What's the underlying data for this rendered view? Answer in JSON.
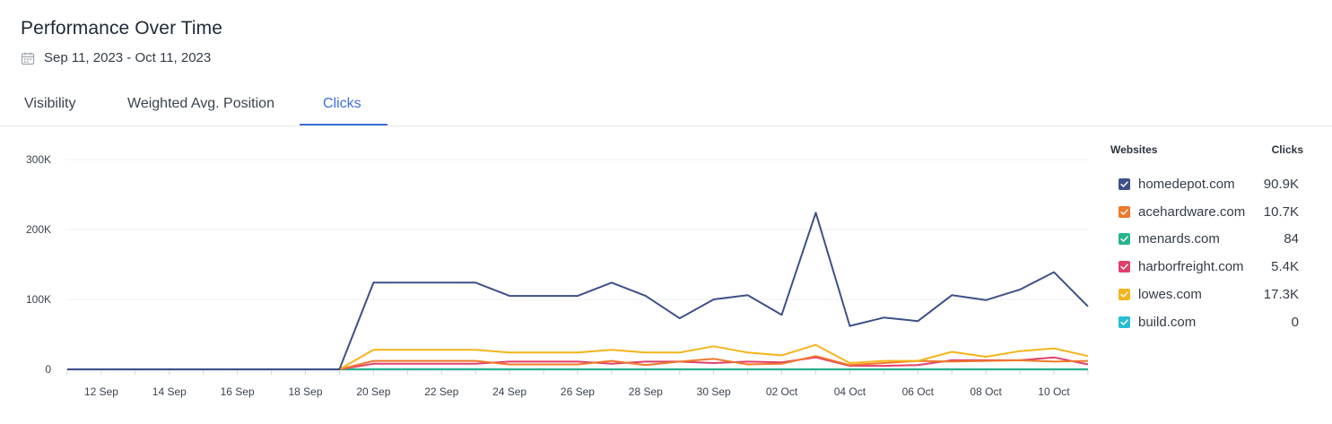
{
  "header": {
    "title": "Performance Over Time",
    "date_range": "Sep 11, 2023 - Oct 11, 2023"
  },
  "tabs": [
    {
      "label": "Visibility",
      "active": false
    },
    {
      "label": "Weighted Avg. Position",
      "active": false
    },
    {
      "label": "Clicks",
      "active": true
    }
  ],
  "legend": {
    "col_site": "Websites",
    "col_value": "Clicks",
    "items": [
      {
        "site": "homedepot.com",
        "value": "90.9K",
        "color": "#3d5088"
      },
      {
        "site": "acehardware.com",
        "value": "10.7K",
        "color": "#f0782a"
      },
      {
        "site": "menards.com",
        "value": "84",
        "color": "#26b48c"
      },
      {
        "site": "harborfreight.com",
        "value": "5.4K",
        "color": "#e0406a"
      },
      {
        "site": "lowes.com",
        "value": "17.3K",
        "color": "#f5b41b"
      },
      {
        "site": "build.com",
        "value": "0",
        "color": "#27bcd8"
      }
    ]
  },
  "chart_data": {
    "type": "line",
    "x": [
      "11 Sep",
      "12 Sep",
      "13 Sep",
      "14 Sep",
      "15 Sep",
      "16 Sep",
      "17 Sep",
      "18 Sep",
      "19 Sep",
      "20 Sep",
      "21 Sep",
      "22 Sep",
      "23 Sep",
      "24 Sep",
      "25 Sep",
      "26 Sep",
      "27 Sep",
      "28 Sep",
      "29 Sep",
      "30 Sep",
      "01 Oct",
      "02 Oct",
      "03 Oct",
      "04 Oct",
      "05 Oct",
      "06 Oct",
      "07 Oct",
      "08 Oct",
      "09 Oct",
      "10 Oct",
      "11 Oct"
    ],
    "x_tick_labels": [
      "12 Sep",
      "14 Sep",
      "16 Sep",
      "18 Sep",
      "20 Sep",
      "22 Sep",
      "24 Sep",
      "26 Sep",
      "28 Sep",
      "30 Sep",
      "02 Oct",
      "04 Oct",
      "06 Oct",
      "08 Oct",
      "10 Oct"
    ],
    "y_ticks": [
      "0",
      "100K",
      "200K",
      "300K"
    ],
    "ylim": [
      0,
      300000
    ],
    "grid": true,
    "legend_position": "right",
    "series": [
      {
        "name": "homedepot.com",
        "color": "#3d5088",
        "values": [
          0,
          0,
          0,
          0,
          0,
          0,
          0,
          0,
          0,
          124000,
          124000,
          124000,
          124000,
          105000,
          105000,
          105000,
          124000,
          105000,
          73000,
          100000,
          106000,
          78000,
          224000,
          62000,
          74000,
          69000,
          106000,
          99000,
          114000,
          139000,
          90000
        ]
      },
      {
        "name": "acehardware.com",
        "color": "#f0782a",
        "values": [
          0,
          0,
          0,
          0,
          0,
          0,
          0,
          0,
          0,
          12000,
          12000,
          12000,
          12000,
          7000,
          7000,
          7000,
          12000,
          6000,
          11000,
          15000,
          7000,
          8000,
          19000,
          6000,
          9000,
          12000,
          11000,
          12000,
          13000,
          11000,
          12000
        ]
      },
      {
        "name": "menards.com",
        "color": "#26b48c",
        "values": [
          0,
          0,
          0,
          0,
          0,
          0,
          0,
          0,
          0,
          200,
          200,
          200,
          200,
          150,
          150,
          150,
          150,
          100,
          100,
          100,
          100,
          100,
          150,
          100,
          100,
          100,
          100,
          100,
          100,
          100,
          100
        ]
      },
      {
        "name": "harborfreight.com",
        "color": "#e0406a",
        "values": [
          0,
          0,
          0,
          0,
          0,
          0,
          0,
          0,
          0,
          8000,
          8000,
          8000,
          8000,
          11000,
          11000,
          11000,
          8000,
          11000,
          11000,
          9000,
          11000,
          10000,
          17000,
          5000,
          5000,
          6000,
          13000,
          13000,
          13000,
          17000,
          7000
        ]
      },
      {
        "name": "lowes.com",
        "color": "#f5b41b",
        "values": [
          0,
          0,
          0,
          0,
          0,
          0,
          0,
          0,
          0,
          28000,
          28000,
          28000,
          28000,
          24000,
          24000,
          24000,
          28000,
          24000,
          24000,
          33000,
          24000,
          20000,
          35000,
          9000,
          12000,
          12000,
          25000,
          18000,
          26000,
          30000,
          19000
        ]
      },
      {
        "name": "build.com",
        "color": "#27bcd8",
        "values": [
          0,
          0,
          0,
          0,
          0,
          0,
          0,
          0,
          0,
          0,
          0,
          0,
          0,
          0,
          0,
          0,
          0,
          0,
          0,
          0,
          0,
          0,
          0,
          0,
          0,
          0,
          0,
          0,
          0,
          0,
          0
        ]
      }
    ]
  }
}
